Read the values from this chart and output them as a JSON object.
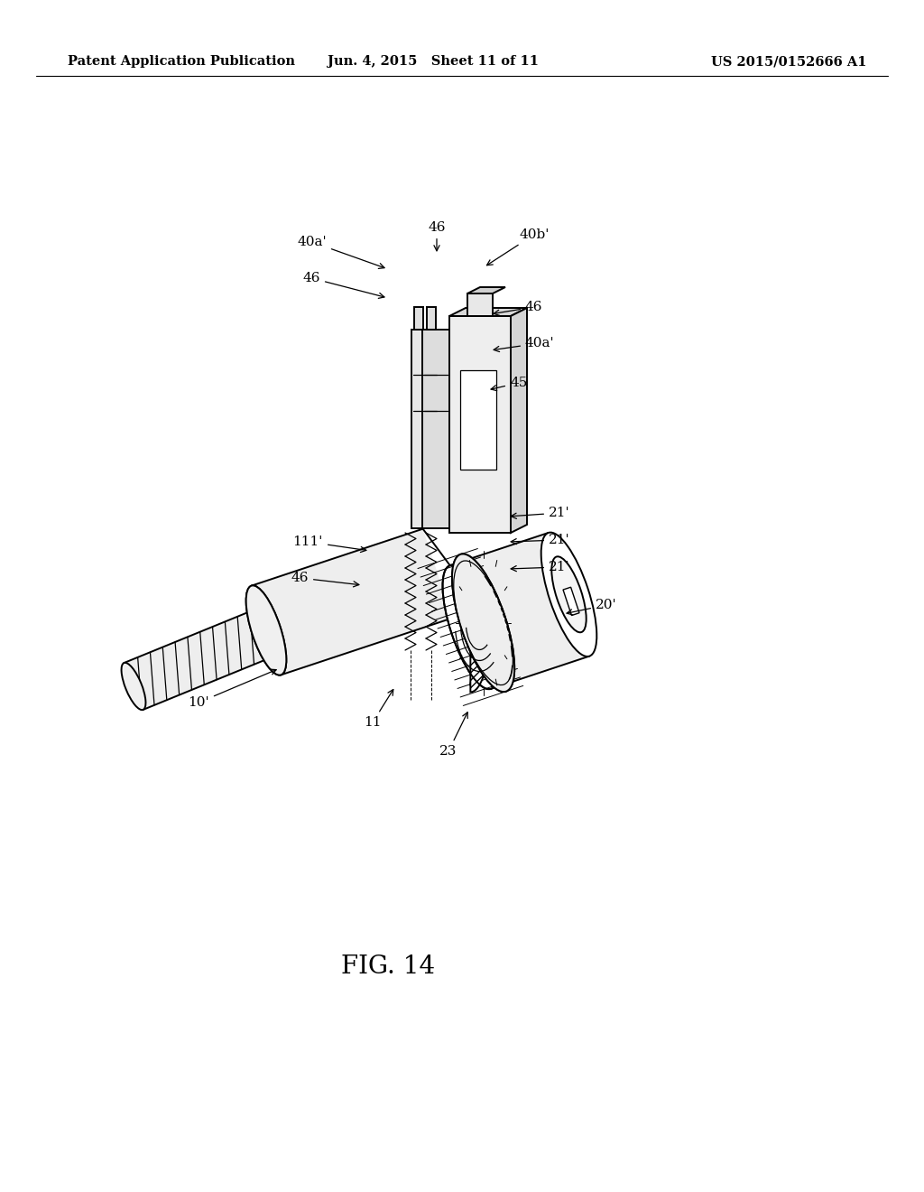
{
  "title": "FIG. 14",
  "header_left": "Patent Application Publication",
  "header_center": "Jun. 4, 2015   Sheet 11 of 11",
  "header_right": "US 2015/0152666 A1",
  "background_color": "#ffffff",
  "line_color": "#000000",
  "header_fontsize": 10.5,
  "title_fontsize": 20,
  "fig_width": 10.24,
  "fig_height": 13.2
}
